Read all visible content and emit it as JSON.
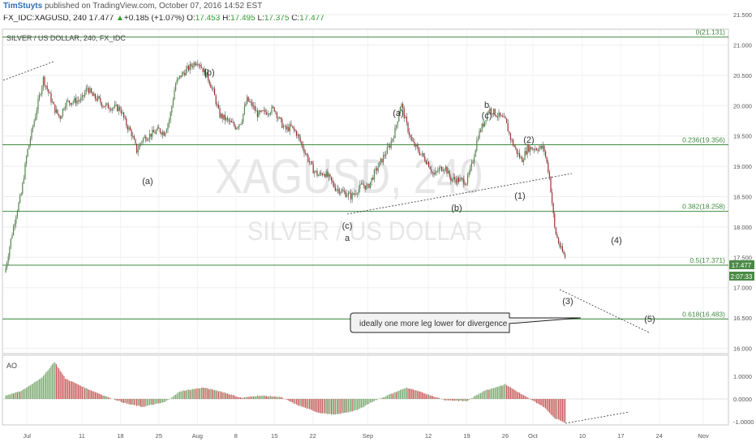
{
  "header": {
    "author": "TimStuyts",
    "published": "published on TradingView.com, October 07, 2016 14:52 EST",
    "symbol_line": "FX_IDC:XAGUSD, 240",
    "last": "17.477",
    "change_arrow": "▲",
    "change": "+0.185 (+1.07%)",
    "o_label": "O:",
    "o": "17.453",
    "h_label": "H:",
    "h": "17.495",
    "l_label": "L:",
    "l": "17.375",
    "c_label": "C:",
    "c": "17.477"
  },
  "chart_data": [
    {
      "type": "candlestick",
      "title": "SILVER / US DOLLAR, 240, FX_IDC",
      "watermark_symbol": "XAGUSD, 240",
      "watermark_name": "SILVER / US DOLLAR",
      "ylim": [
        15.8,
        21.6
      ],
      "y_ticks": [
        "21.500",
        "21.000",
        "20.500",
        "20.000",
        "19.500",
        "19.000",
        "18.500",
        "18.000",
        "17.500",
        "17.000",
        "16.500",
        "16.000"
      ],
      "x_ticks": [
        "Jul",
        "11",
        "18",
        "25",
        "Aug",
        "8",
        "15",
        "22",
        "Sep",
        "12",
        "19",
        "26",
        "Oct",
        "10",
        "17",
        "24",
        "Nov"
      ],
      "last_price_label": "17.477",
      "countdown_label": "2:07:33",
      "close_path": [
        [
          "2016-06-27",
          17.25
        ],
        [
          "2016-06-28",
          17.75
        ],
        [
          "2016-06-29",
          18.2
        ],
        [
          "2016-06-30",
          18.55
        ],
        [
          "2016-07-01",
          19.2
        ],
        [
          "2016-07-04",
          20.45
        ],
        [
          "2016-07-05",
          20.2
        ],
        [
          "2016-07-06",
          19.95
        ],
        [
          "2016-07-07",
          19.8
        ],
        [
          "2016-07-08",
          20.05
        ],
        [
          "2016-07-11",
          20.1
        ],
        [
          "2016-07-12",
          20.3
        ],
        [
          "2016-07-13",
          20.15
        ],
        [
          "2016-07-14",
          20.1
        ],
        [
          "2016-07-15",
          20.0
        ],
        [
          "2016-07-18",
          19.95
        ],
        [
          "2016-07-19",
          19.7
        ],
        [
          "2016-07-20",
          19.55
        ],
        [
          "2016-07-21",
          19.25
        ],
        [
          "2016-07-22",
          19.45
        ],
        [
          "2016-07-25",
          19.6
        ],
        [
          "2016-07-26",
          19.55
        ],
        [
          "2016-07-27",
          19.8
        ],
        [
          "2016-07-28",
          20.35
        ],
        [
          "2016-07-29",
          20.5
        ],
        [
          "2016-08-01",
          20.75
        ],
        [
          "2016-08-02",
          20.6
        ],
        [
          "2016-08-03",
          20.45
        ],
        [
          "2016-08-04",
          20.2
        ],
        [
          "2016-08-05",
          19.85
        ],
        [
          "2016-08-08",
          19.65
        ],
        [
          "2016-08-09",
          19.75
        ],
        [
          "2016-08-10",
          20.1
        ],
        [
          "2016-08-11",
          20.0
        ],
        [
          "2016-08-12",
          19.85
        ],
        [
          "2016-08-15",
          19.95
        ],
        [
          "2016-08-16",
          19.75
        ],
        [
          "2016-08-17",
          19.6
        ],
        [
          "2016-08-18",
          19.65
        ],
        [
          "2016-08-19",
          19.55
        ],
        [
          "2016-08-22",
          18.95
        ],
        [
          "2016-08-23",
          18.85
        ],
        [
          "2016-08-24",
          18.9
        ],
        [
          "2016-08-25",
          18.8
        ],
        [
          "2016-08-26",
          18.65
        ],
        [
          "2016-08-29",
          18.5
        ],
        [
          "2016-08-30",
          18.6
        ],
        [
          "2016-08-31",
          18.7
        ],
        [
          "2016-09-01",
          18.65
        ],
        [
          "2016-09-02",
          18.85
        ],
        [
          "2016-09-05",
          19.35
        ],
        [
          "2016-09-06",
          19.6
        ],
        [
          "2016-09-07",
          20.05
        ],
        [
          "2016-09-08",
          19.7
        ],
        [
          "2016-09-09",
          19.4
        ],
        [
          "2016-09-12",
          19.05
        ],
        [
          "2016-09-13",
          18.85
        ],
        [
          "2016-09-14",
          18.95
        ],
        [
          "2016-09-15",
          19.0
        ],
        [
          "2016-09-16",
          18.8
        ],
        [
          "2016-09-19",
          18.75
        ],
        [
          "2016-09-20",
          19.05
        ],
        [
          "2016-09-21",
          19.5
        ],
        [
          "2016-09-22",
          19.7
        ],
        [
          "2016-09-23",
          19.95
        ],
        [
          "2016-09-26",
          19.75
        ],
        [
          "2016-09-27",
          19.45
        ],
        [
          "2016-09-28",
          19.25
        ],
        [
          "2016-09-29",
          19.1
        ],
        [
          "2016-09-30",
          19.3
        ],
        [
          "2016-10-03",
          19.3
        ],
        [
          "2016-10-04",
          18.85
        ],
        [
          "2016-10-05",
          17.95
        ],
        [
          "2016-10-06",
          17.65
        ],
        [
          "2016-10-07",
          17.477
        ]
      ],
      "horizontal_levels": [
        {
          "value": 21.131,
          "label": "0(21.131)"
        },
        {
          "value": 19.356,
          "label": "0.236(19.356)"
        },
        {
          "value": 18.258,
          "label": "0.382(18.258)"
        },
        {
          "value": 17.371,
          "label": "0.5(17.371)"
        },
        {
          "value": 16.483,
          "label": "0.618(16.483)"
        }
      ],
      "wave_labels": [
        "(a)",
        "(b)",
        "(c)",
        "a",
        "(a)",
        "(b)",
        "b",
        "(c)",
        "(1)",
        "(2)",
        "(3)",
        "(4)",
        "(5)"
      ],
      "annotation": "ideally one more leg lower for divergence"
    },
    {
      "type": "bar",
      "title": "AO",
      "ylim": [
        -1.25,
        1.6
      ],
      "y_ticks": [
        "1.0000",
        "0.0000",
        "-1.0000"
      ],
      "histogram_path": [
        [
          "2016-06-27",
          0.15
        ],
        [
          "2016-06-30",
          0.35
        ],
        [
          "2016-07-04",
          1.0
        ],
        [
          "2016-07-06",
          1.65
        ],
        [
          "2016-07-08",
          0.9
        ],
        [
          "2016-07-12",
          0.45
        ],
        [
          "2016-07-15",
          0.15
        ],
        [
          "2016-07-19",
          -0.2
        ],
        [
          "2016-07-22",
          -0.35
        ],
        [
          "2016-07-26",
          -0.15
        ],
        [
          "2016-07-29",
          0.35
        ],
        [
          "2016-08-02",
          0.5
        ],
        [
          "2016-08-05",
          0.35
        ],
        [
          "2016-08-09",
          0.05
        ],
        [
          "2016-08-12",
          0.15
        ],
        [
          "2016-08-16",
          0.1
        ],
        [
          "2016-08-19",
          -0.25
        ],
        [
          "2016-08-23",
          -0.6
        ],
        [
          "2016-08-26",
          -0.7
        ],
        [
          "2016-08-30",
          -0.5
        ],
        [
          "2016-09-02",
          -0.1
        ],
        [
          "2016-09-06",
          0.3
        ],
        [
          "2016-09-08",
          0.5
        ],
        [
          "2016-09-12",
          0.2
        ],
        [
          "2016-09-15",
          -0.05
        ],
        [
          "2016-09-19",
          -0.1
        ],
        [
          "2016-09-22",
          0.35
        ],
        [
          "2016-09-26",
          0.65
        ],
        [
          "2016-09-29",
          0.2
        ],
        [
          "2016-10-03",
          -0.35
        ],
        [
          "2016-10-05",
          -0.85
        ],
        [
          "2016-10-07",
          -1.05
        ]
      ]
    }
  ]
}
